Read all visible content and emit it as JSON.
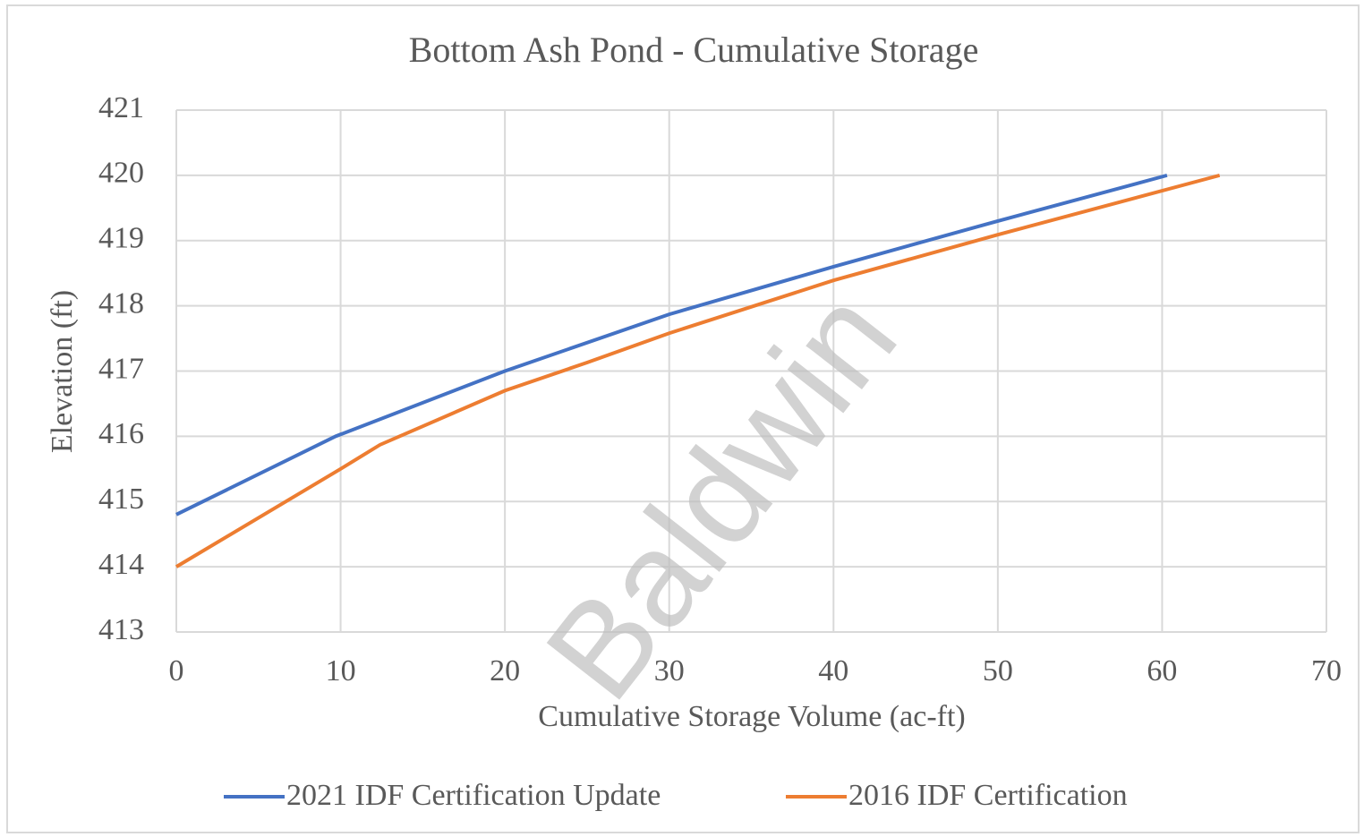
{
  "chart_data": {
    "type": "line",
    "title": "Bottom Ash Pond - Cumulative  Storage",
    "xlabel": "Cumulative Storage Volume (ac-ft)",
    "ylabel": "Elevation (ft)",
    "watermark": "Baldwin",
    "xlim": [
      0,
      70
    ],
    "xticks": [
      0,
      10,
      20,
      30,
      40,
      50,
      60,
      70
    ],
    "ylim": [
      413,
      421
    ],
    "yticks": [
      413,
      414,
      415,
      416,
      417,
      418,
      419,
      420,
      421
    ],
    "grid": true,
    "legend": "bottom",
    "series": [
      {
        "name": "2021 IDF Certification Update",
        "color": "#4472c4",
        "x": [
          0,
          9.7,
          20,
          30,
          40,
          50,
          60.3
        ],
        "values": [
          414.8,
          416.0,
          417.0,
          417.87,
          418.6,
          419.3,
          420
        ]
      },
      {
        "name": "2016 IDF Certification",
        "color": "#ed7d31",
        "x": [
          0,
          10,
          12.4,
          20,
          25,
          30,
          40,
          50,
          63.5
        ],
        "values": [
          414,
          415.5,
          415.87,
          416.7,
          417.13,
          417.58,
          418.39,
          419.09,
          420
        ]
      }
    ]
  }
}
